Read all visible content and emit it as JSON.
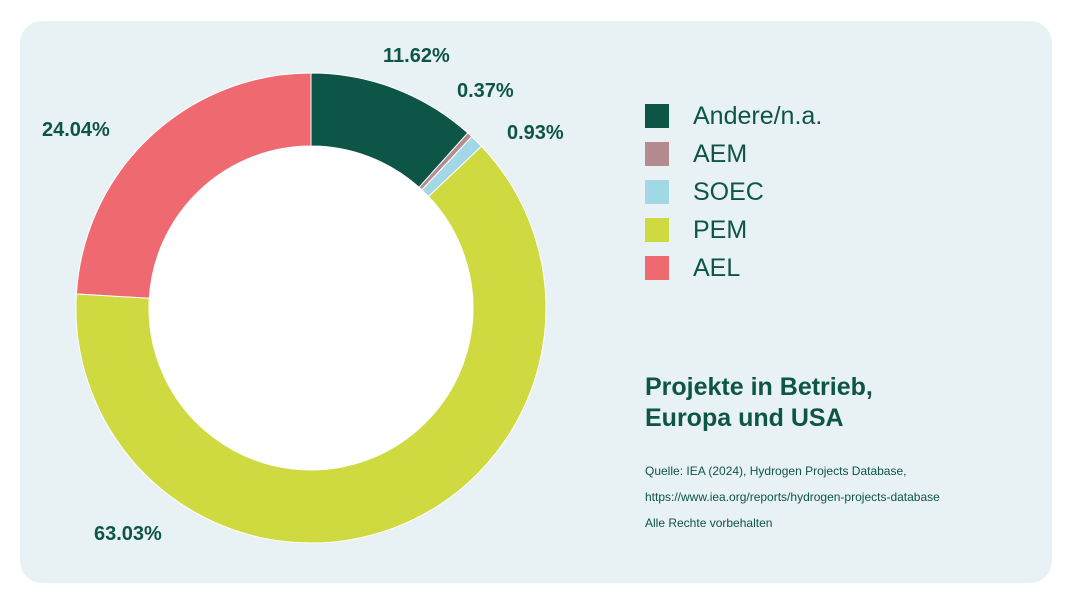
{
  "chart_data": {
    "type": "pie",
    "variant": "donut",
    "title_lines": [
      "Projekte in Betrieb,",
      "Europa und USA"
    ],
    "slices": [
      {
        "name": "Andere/n.a.",
        "value": 11.62,
        "label": "11.62%",
        "color": "#0d5547"
      },
      {
        "name": "AEM",
        "value": 0.37,
        "label": "0.37%",
        "color": "#b48b8e"
      },
      {
        "name": "SOEC",
        "value": 0.93,
        "label": "0.93%",
        "color": "#a2d8e6"
      },
      {
        "name": "PEM",
        "value": 63.03,
        "label": "63.03%",
        "color": "#cfd940"
      },
      {
        "name": "AEL",
        "value": 24.04,
        "label": "24.04%",
        "color": "#ef6a70"
      }
    ],
    "legend_position": "right",
    "start_angle": "top",
    "direction": "clockwise"
  },
  "source": {
    "lines": [
      "Quelle: IEA (2024), Hydrogen Projects Database,",
      "https://www.iea.org/reports/hydrogen-projects-database",
      "Alle Rechte vorbehalten"
    ]
  },
  "colors": {
    "background": "#e8f1f3",
    "text": "#0d5547"
  }
}
